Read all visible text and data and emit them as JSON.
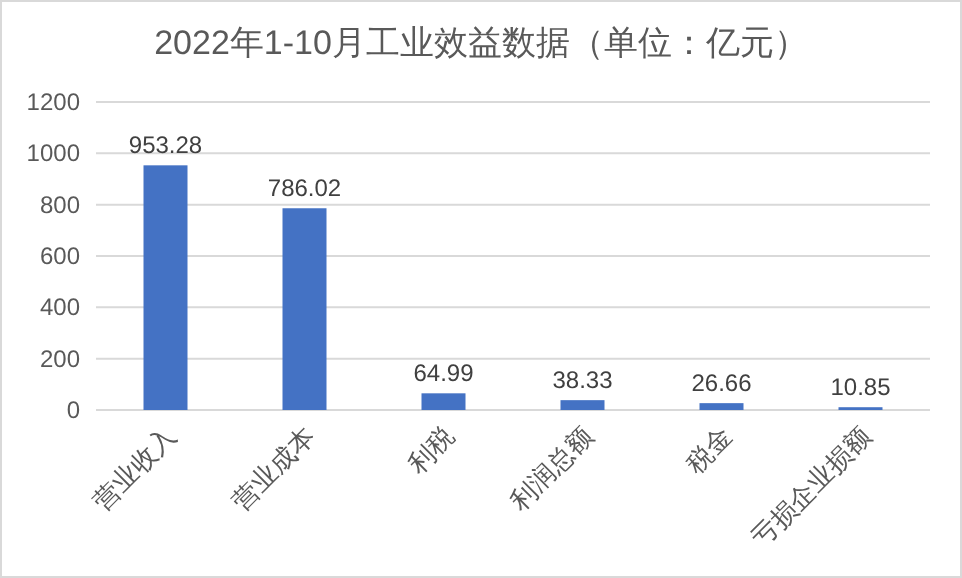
{
  "chart_data": {
    "type": "bar",
    "title": "2022年1-10月工业效益数据（单位：亿元）",
    "categories": [
      "营业收入",
      "营业成本",
      "利税",
      "利润总额",
      "税金",
      "亏损企业损额"
    ],
    "values": [
      953.28,
      786.02,
      64.99,
      38.33,
      26.66,
      10.85
    ],
    "color": "#4472c4",
    "ylim": [
      0,
      1200
    ],
    "yticks": [
      0,
      200,
      400,
      600,
      800,
      1000,
      1200
    ],
    "grid": "y",
    "data_labels": true
  }
}
